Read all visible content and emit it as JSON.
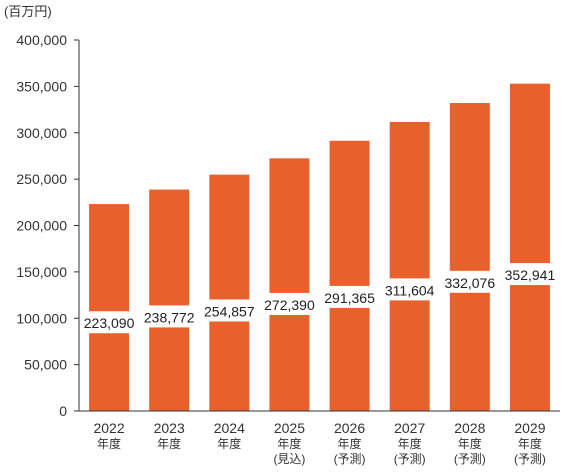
{
  "chart_data": {
    "type": "bar",
    "unit_label": "(百万円)",
    "categories": [
      [
        "2022",
        "年度"
      ],
      [
        "2023",
        "年度"
      ],
      [
        "2024",
        "年度"
      ],
      [
        "2025",
        "年度",
        "(見込)"
      ],
      [
        "2026",
        "年度",
        "(予測)"
      ],
      [
        "2027",
        "年度",
        "(予測)"
      ],
      [
        "2028",
        "年度",
        "(予測)"
      ],
      [
        "2029",
        "年度",
        "(予測)"
      ]
    ],
    "values": [
      223090,
      238772,
      254857,
      272390,
      291365,
      311604,
      332076,
      352941
    ],
    "value_labels": [
      "223,090",
      "238,772",
      "254,857",
      "272,390",
      "291,365",
      "311,604",
      "332,076",
      "352,941"
    ],
    "ylim": [
      0,
      400000
    ],
    "yticks": [
      0,
      50000,
      100000,
      150000,
      200000,
      250000,
      300000,
      350000,
      400000
    ],
    "ytick_labels": [
      "0",
      "50,000",
      "100,000",
      "150,000",
      "200,000",
      "250,000",
      "300,000",
      "350,000",
      "400,000"
    ],
    "bar_color": "#E8602C",
    "axis_color": "#333333",
    "grid": false,
    "legend": "none"
  }
}
